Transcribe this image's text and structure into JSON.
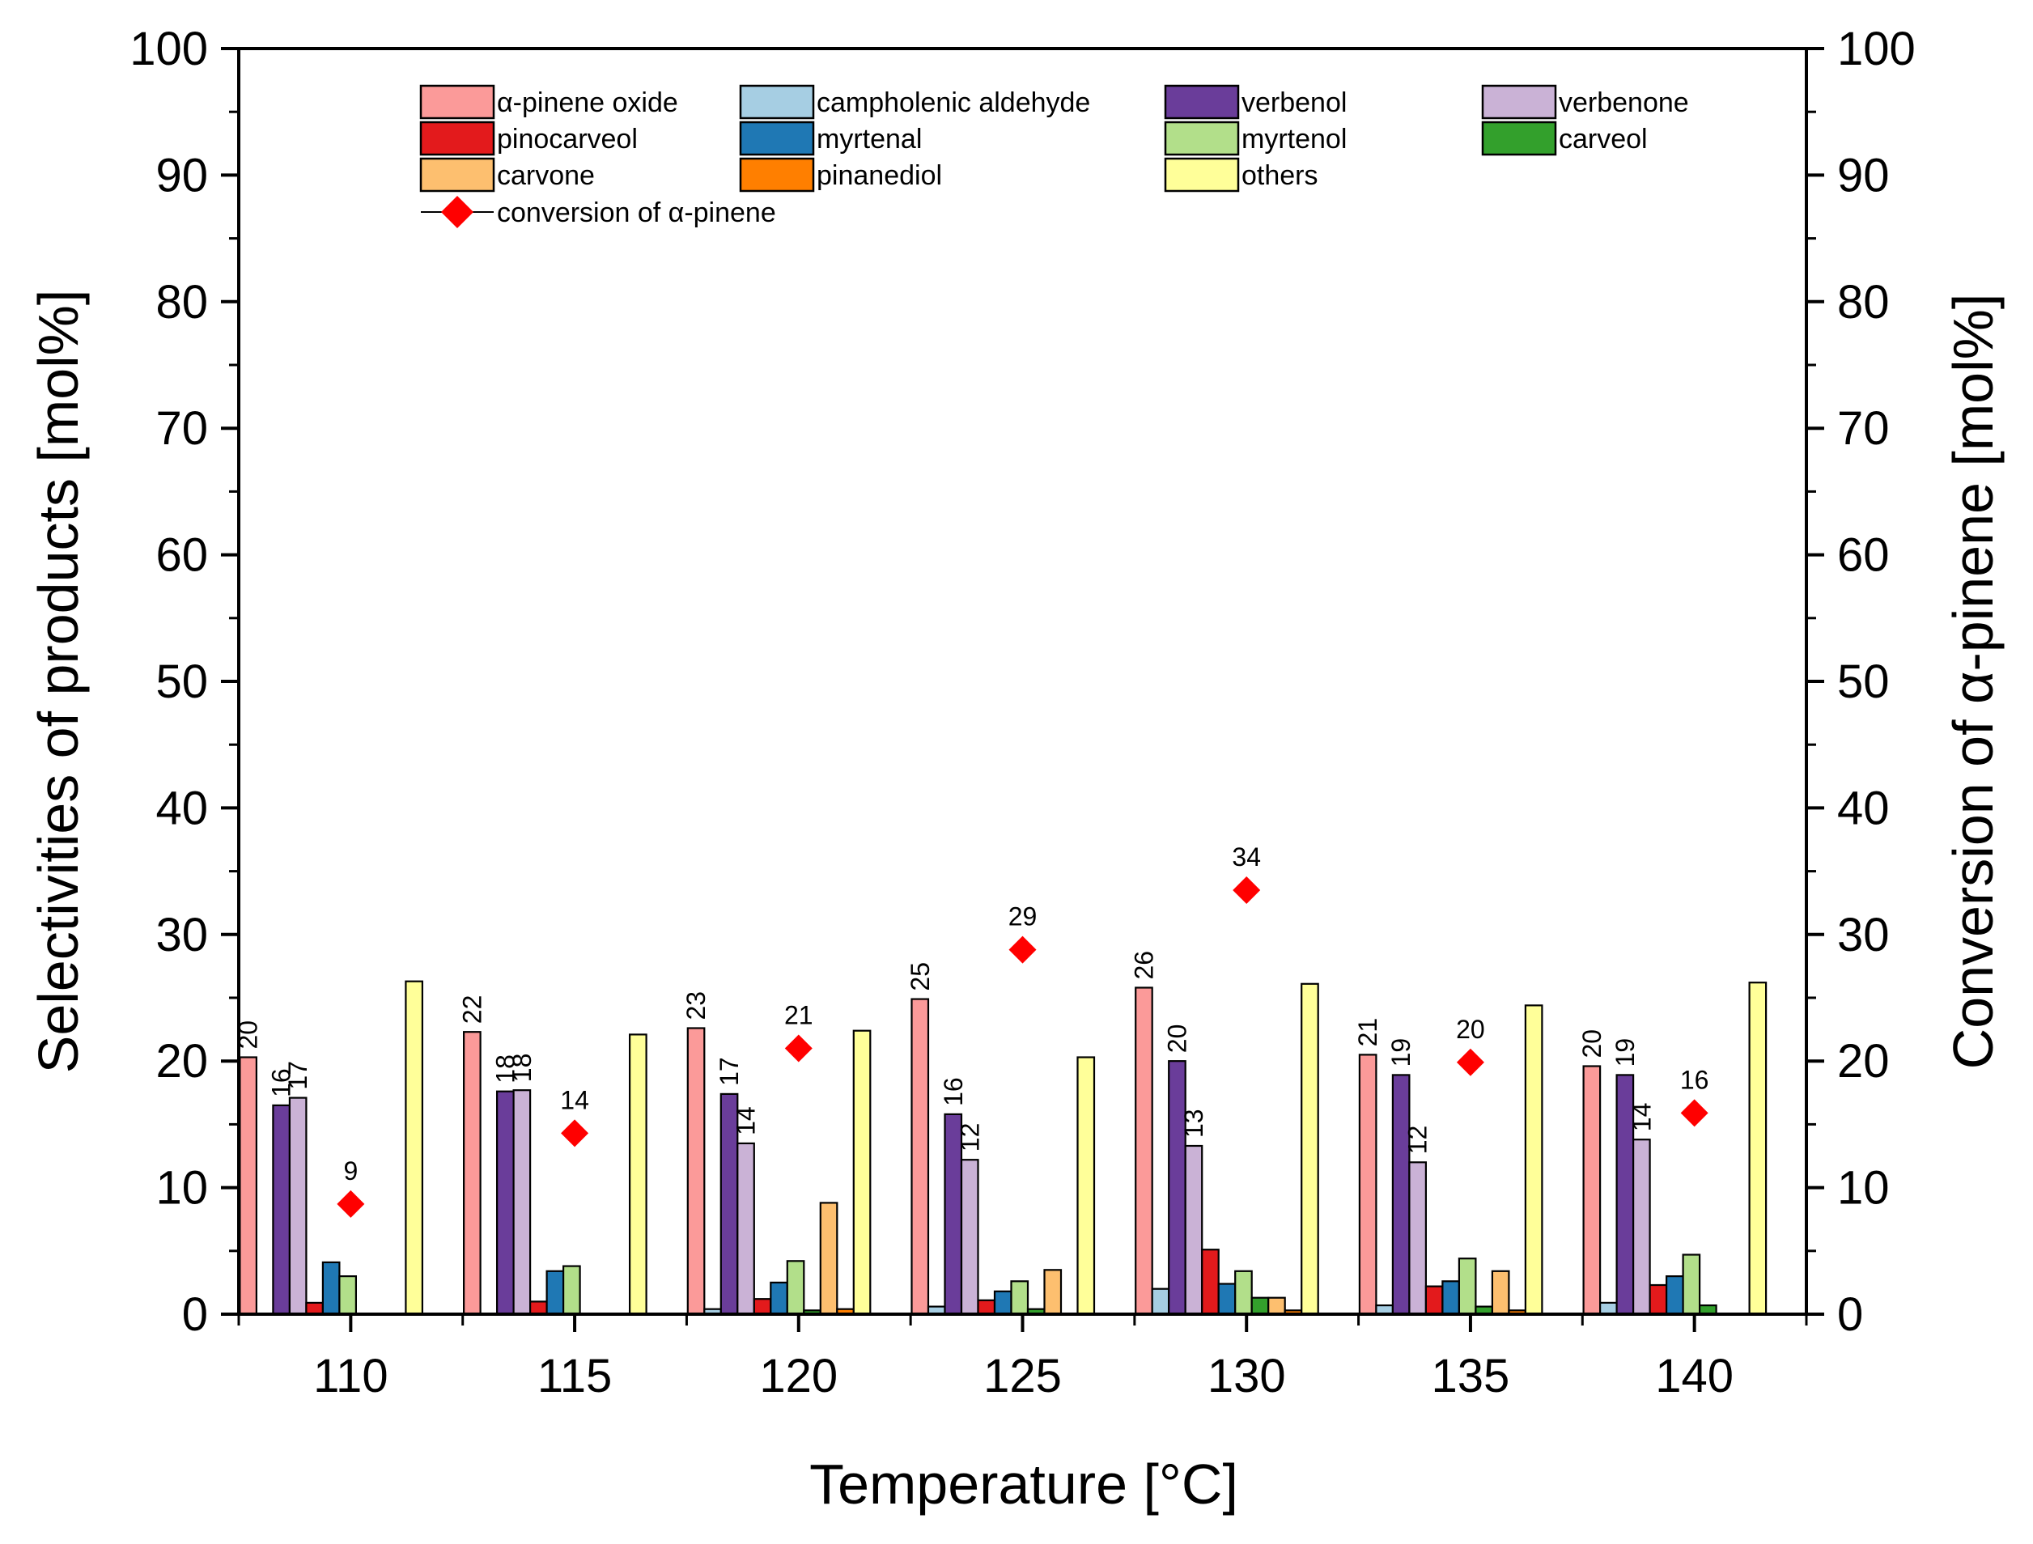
{
  "chart_data": {
    "type": "bar",
    "title": "",
    "xlabel": "Temperature [°C]",
    "ylabel": "Selectivities of products [mol%]",
    "y2label": "Conversion of α-pinene [mol%]",
    "ylim": [
      0,
      100
    ],
    "y2lim": [
      0,
      100
    ],
    "y_ticks": [
      "0",
      "10",
      "20",
      "30",
      "40",
      "50",
      "60",
      "70",
      "80",
      "90",
      "100"
    ],
    "categories": [
      "110",
      "115",
      "120",
      "125",
      "130",
      "135",
      "140"
    ],
    "legend_position": "top",
    "series": [
      {
        "name": "α-pinene oxide",
        "color": "#fb9a99",
        "values": [
          20.3,
          22.3,
          22.6,
          24.9,
          25.8,
          20.5,
          19.6
        ],
        "labels": [
          "20",
          "22",
          "23",
          "25",
          "26",
          "21",
          "20"
        ]
      },
      {
        "name": "campholenic aldehyde",
        "color": "#a6cee3",
        "values": [
          0,
          0,
          0.4,
          0.6,
          2.0,
          0.7,
          0.9
        ],
        "labels": [
          "",
          "",
          "",
          "",
          "",
          "",
          ""
        ]
      },
      {
        "name": "verbenol",
        "color": "#6a3d9a",
        "values": [
          16.5,
          17.6,
          17.4,
          15.8,
          20.0,
          18.9,
          18.9
        ],
        "labels": [
          "16",
          "18",
          "17",
          "16",
          "20",
          "19",
          "19"
        ]
      },
      {
        "name": "verbenone",
        "color": "#cab2d6",
        "values": [
          17.1,
          17.7,
          13.5,
          12.2,
          13.3,
          12.0,
          13.8
        ],
        "labels": [
          "17",
          "18",
          "14",
          "12",
          "13",
          "12",
          "14"
        ]
      },
      {
        "name": "pinocarveol",
        "color": "#e31a1c",
        "values": [
          0.9,
          1.0,
          1.2,
          1.1,
          5.1,
          2.2,
          2.3
        ],
        "labels": [
          "",
          "",
          "",
          "",
          "",
          "",
          ""
        ]
      },
      {
        "name": "myrtenal",
        "color": "#1f78b4",
        "values": [
          4.1,
          3.4,
          2.5,
          1.8,
          2.4,
          2.6,
          3.0
        ],
        "labels": [
          "",
          "",
          "",
          "",
          "",
          "",
          ""
        ]
      },
      {
        "name": "myrtenol",
        "color": "#b2df8a",
        "values": [
          3.0,
          3.8,
          4.2,
          2.6,
          3.4,
          4.4,
          4.7
        ],
        "labels": [
          "",
          "",
          "",
          "",
          "",
          "",
          ""
        ]
      },
      {
        "name": "carveol",
        "color": "#33a02c",
        "values": [
          0,
          0,
          0.3,
          0.4,
          1.3,
          0.6,
          0.7
        ],
        "labels": [
          "",
          "",
          "",
          "",
          "",
          "",
          ""
        ]
      },
      {
        "name": "carvone",
        "color": "#fdbf6f",
        "values": [
          0,
          0,
          8.8,
          3.5,
          1.3,
          3.4,
          0
        ],
        "labels": [
          "",
          "",
          "",
          "",
          "",
          "",
          ""
        ]
      },
      {
        "name": "pinanediol",
        "color": "#ff7f00",
        "values": [
          0,
          0,
          0.4,
          0,
          0.3,
          0.3,
          0
        ],
        "labels": [
          "",
          "",
          "",
          "",
          "",
          "",
          ""
        ]
      },
      {
        "name": "others",
        "color": "#ffff99",
        "values": [
          26.3,
          22.1,
          22.4,
          20.3,
          26.1,
          24.4,
          26.2
        ],
        "labels": [
          "",
          "",
          "",
          "",
          "",
          "",
          ""
        ]
      }
    ],
    "conversion": {
      "name": "conversion of α-pinene",
      "color": "#ff0000",
      "values": [
        8.7,
        14.3,
        21.0,
        28.8,
        33.5,
        19.9,
        15.9
      ],
      "labels": [
        "9",
        "14",
        "21",
        "29",
        "34",
        "20",
        "16"
      ]
    }
  }
}
